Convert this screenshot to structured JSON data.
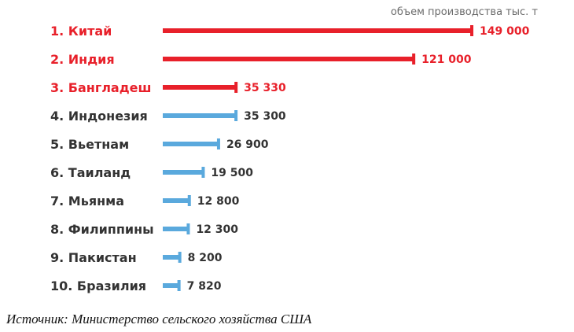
{
  "chart_data": {
    "type": "bar",
    "orientation": "horizontal",
    "unit_label": "объем производства тыс. т",
    "categories": [
      "1. Китай",
      "2. Индия",
      "3. Бангладеш",
      "4. Индонезия",
      "5. Вьетнам",
      "6. Таиланд",
      "7. Мьянма",
      "8. Филиппины",
      "9. Пакистан",
      "10. Бразилия"
    ],
    "values": [
      149000,
      121000,
      35330,
      35300,
      26900,
      19500,
      12800,
      12300,
      8200,
      7820
    ],
    "value_labels": [
      "149 000",
      "121 000",
      "35 330",
      "35 300",
      "26 900",
      "19 500",
      "12 800",
      "12 300",
      "8 200",
      "7 820"
    ],
    "highlighted_top": 3,
    "colors": {
      "highlight": "#e8202a",
      "normal": "#5aa9dd",
      "label_dark": "#333333"
    },
    "grid": false,
    "legend": "none"
  },
  "source": "Источник: Министерство сельского хозяйства США"
}
